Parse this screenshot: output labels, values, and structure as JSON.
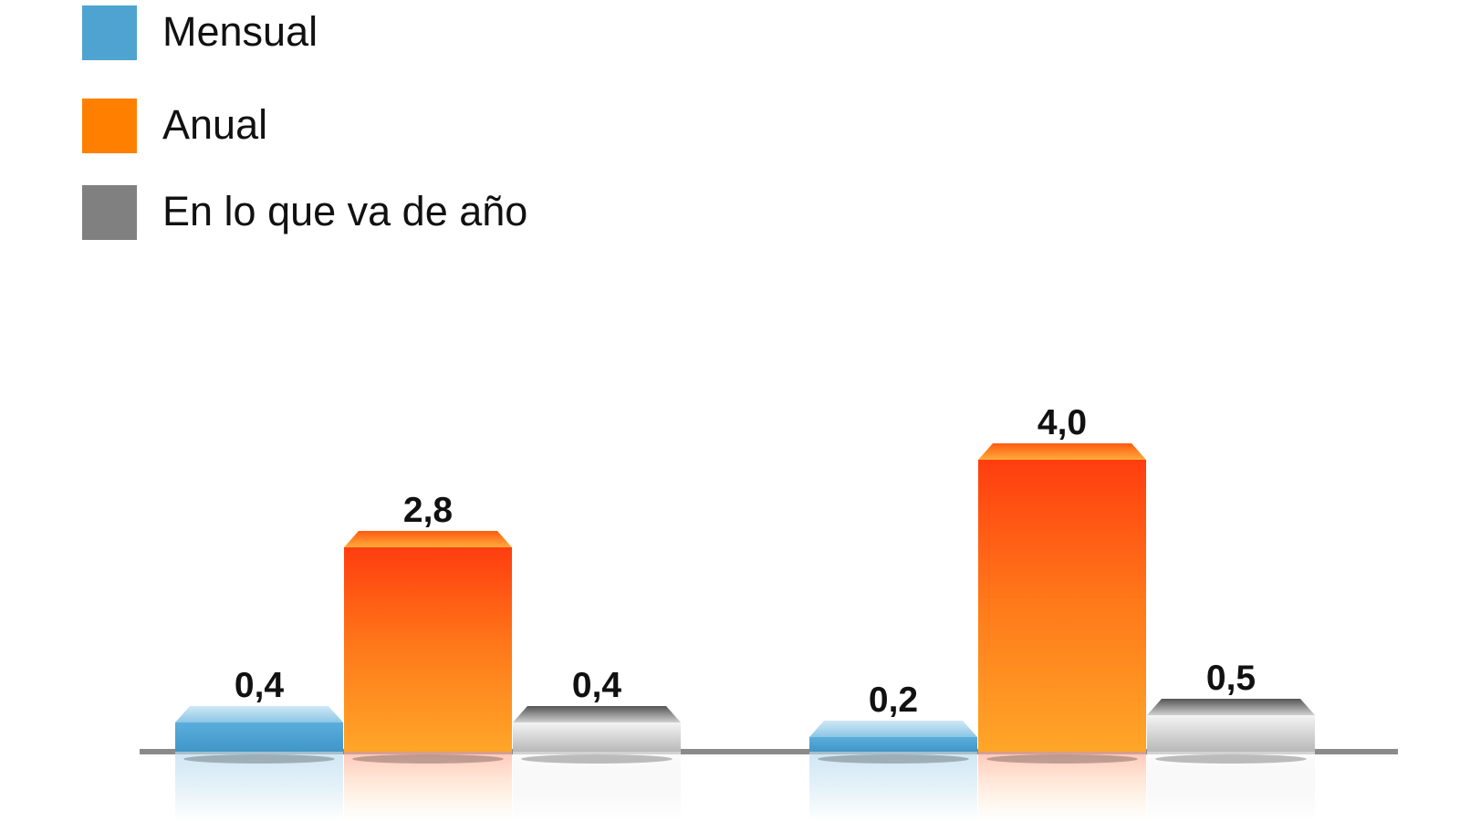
{
  "chart_data": {
    "type": "bar",
    "categories": [
      null,
      null
    ],
    "series": [
      {
        "name": "Mensual",
        "color": "#4fa3d1",
        "values": [
          0.4,
          0.2
        ],
        "value_labels": [
          "0,4",
          "0,2"
        ]
      },
      {
        "name": "Anual",
        "color": "#ff8000",
        "values": [
          2.8,
          4.0
        ],
        "value_labels": [
          "2,8",
          "4,0"
        ]
      },
      {
        "name": "En lo que va de año",
        "color": "#808080",
        "values": [
          0.4,
          0.5
        ],
        "value_labels": [
          "0,4",
          "0,5"
        ]
      }
    ],
    "legend": "top-left"
  }
}
